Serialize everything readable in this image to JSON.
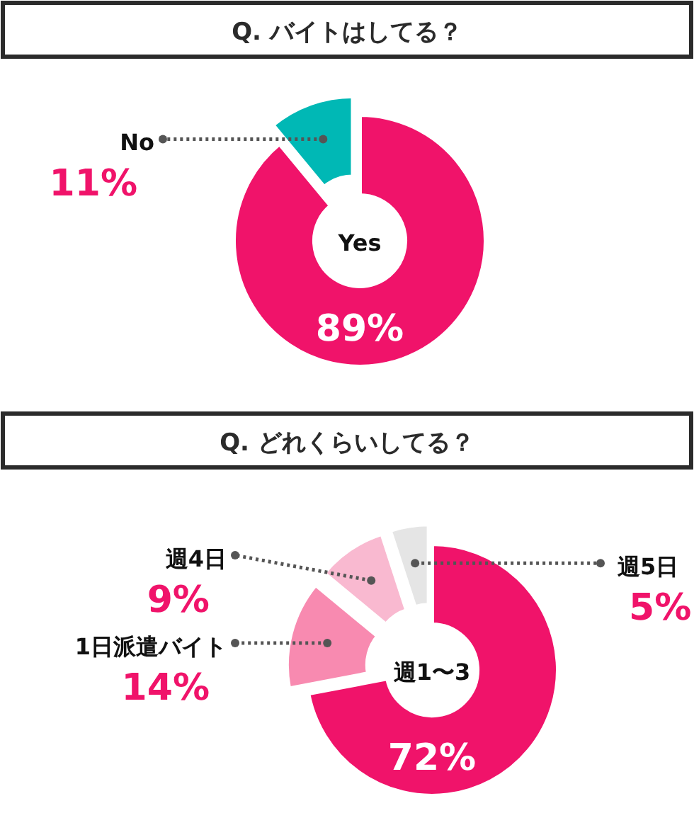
{
  "chart_data": [
    {
      "type": "donut",
      "title": "Q. バイトはしてる？",
      "categories": [
        "Yes",
        "No"
      ],
      "values": [
        89,
        11
      ],
      "value_labels": [
        "89%",
        "11%"
      ],
      "colors": [
        "#f0136a",
        "#00b8b5"
      ]
    },
    {
      "type": "donut",
      "title": "Q. どれくらいしてる？",
      "categories": [
        "週1〜3",
        "1日派遣バイト",
        "週4日",
        "週5日"
      ],
      "values": [
        72,
        14,
        9,
        5
      ],
      "value_labels": [
        "72%",
        "14%",
        "9%",
        "5%"
      ],
      "colors": [
        "#f0136a",
        "#f88ab0",
        "#f9b9d0",
        "#e5e5e5"
      ]
    }
  ]
}
